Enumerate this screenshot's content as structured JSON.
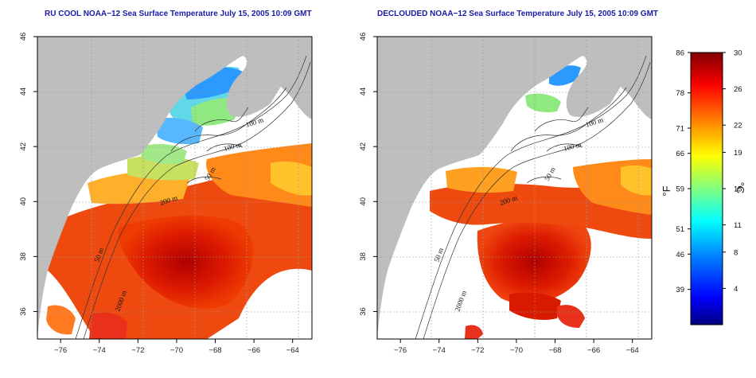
{
  "panels": [
    {
      "id": "left",
      "title": "RU COOL NOAA−12 Sea Surface Temperature July 15, 2005 10:09 GMT",
      "contour_labels": [
        "100 m",
        "100 m",
        "50 m",
        "200 m",
        "50 m",
        "2000 m"
      ]
    },
    {
      "id": "right",
      "title": "DECLOUDED NOAA−12 Sea Surface Temperature July 15, 2005 10:09 GMT",
      "contour_labels": [
        "100 m",
        "100 m",
        "50 m",
        "200 m",
        "50 m",
        "2000 m"
      ]
    }
  ],
  "axes": {
    "x_ticks": [
      "−76",
      "−74",
      "−72",
      "−70",
      "−68",
      "−66",
      "−64"
    ],
    "x_values": [
      -76,
      -74,
      -72,
      -70,
      -68,
      -66,
      -64
    ],
    "y_ticks": [
      "36",
      "38",
      "40",
      "42",
      "44",
      "46"
    ],
    "y_values": [
      36,
      38,
      40,
      42,
      44,
      46
    ],
    "lon_range": [
      -77.2,
      -63.0
    ],
    "lat_range": [
      35.0,
      46.0
    ]
  },
  "colorbar": {
    "fahrenheit_label": "°F",
    "celsius_label": "°C",
    "fahrenheit_ticks": [
      "86",
      "78",
      "71",
      "66",
      "59",
      "51",
      "46",
      "39"
    ],
    "fahrenheit_values": [
      86,
      78,
      71,
      66,
      59,
      51,
      46,
      39
    ],
    "celsius_ticks": [
      "30",
      "26",
      "22",
      "19",
      "15",
      "11",
      "8",
      "4"
    ],
    "celsius_values": [
      30,
      26,
      22,
      19,
      15,
      11,
      8,
      4
    ],
    "range_c": [
      0,
      30
    ],
    "colors": [
      "#000080",
      "#0000ff",
      "#0080ff",
      "#00ffff",
      "#80ff80",
      "#ffff00",
      "#ff8000",
      "#ff0000",
      "#800000"
    ]
  },
  "colors": {
    "land": "#bebebe",
    "no_data": "#ffffff",
    "title": "#1a1aa8",
    "contour": "#333333",
    "grid": "#9a9a9a"
  }
}
